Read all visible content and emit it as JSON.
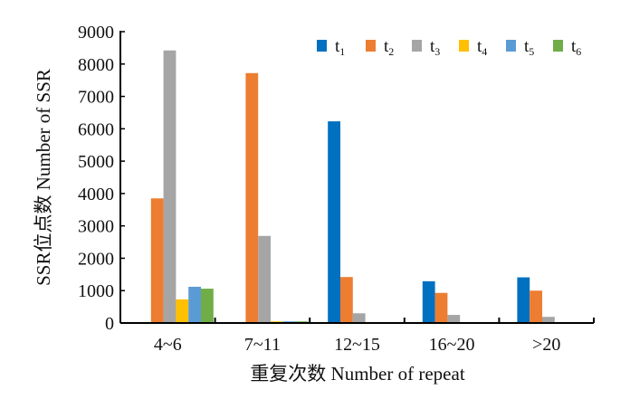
{
  "chart_data": {
    "type": "bar",
    "title": "",
    "xlabel": "重复次数 Number of repeat",
    "ylabel": "SSR位点数 Number of SSR",
    "categories": [
      "4~6",
      "7~11",
      "12~15",
      "16~20",
      ">20"
    ],
    "ylim": [
      0,
      9000
    ],
    "yticks": [
      0,
      1000,
      2000,
      3000,
      4000,
      5000,
      6000,
      7000,
      8000,
      9000
    ],
    "grid": false,
    "legend_position": "top-right",
    "series": [
      {
        "name": "t",
        "sub": "1",
        "color": "#0070C0",
        "values": [
          0,
          0,
          6230,
          1290,
          1410
        ]
      },
      {
        "name": "t",
        "sub": "2",
        "color": "#ED7D31",
        "values": [
          3850,
          7720,
          1420,
          930,
          1000
        ]
      },
      {
        "name": "t",
        "sub": "3",
        "color": "#A5A5A5",
        "values": [
          8420,
          2690,
          300,
          250,
          190
        ]
      },
      {
        "name": "t",
        "sub": "4",
        "color": "#FFC000",
        "values": [
          730,
          50,
          0,
          0,
          0
        ]
      },
      {
        "name": "t",
        "sub": "5",
        "color": "#5B9BD5",
        "values": [
          1120,
          50,
          0,
          0,
          0
        ]
      },
      {
        "name": "t",
        "sub": "6",
        "color": "#70AD47",
        "values": [
          1060,
          50,
          0,
          0,
          0
        ]
      }
    ]
  }
}
